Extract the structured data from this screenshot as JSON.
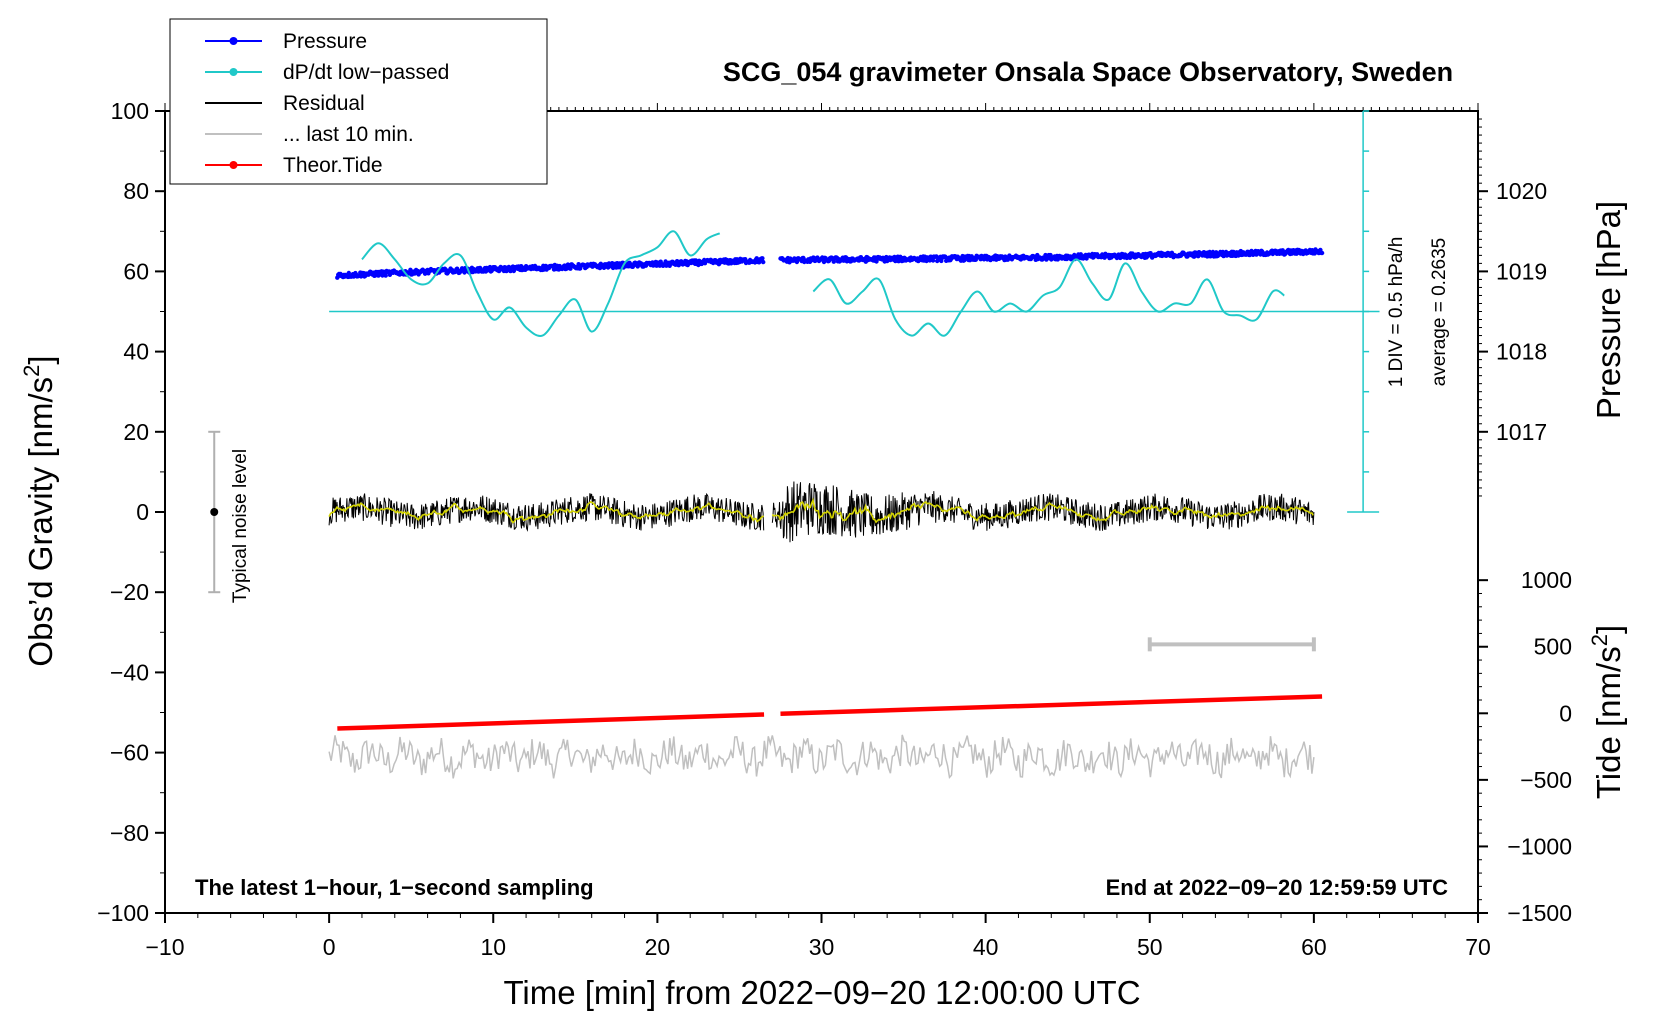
{
  "chart_data": {
    "type": "line",
    "title": "SCG_054 gravimeter Onsala Space Observatory, Sweden",
    "xlabel": "Time [min] from 2022−09−20 12:00:00 UTC",
    "ylabel_left": "Obs’d Gravity [nm/s",
    "ylabel_left_sup": "2",
    "ylabel_left_close": "]",
    "ylabel_right_pressure": "Pressure [hPa]",
    "ylabel_right_tide": "Tide [nm/s",
    "ylabel_right_tide_sup": "2",
    "ylabel_right_tide_close": "]",
    "xlim": [
      -10,
      70
    ],
    "ylim": [
      -100,
      100
    ],
    "x_ticks": [
      -10,
      0,
      10,
      20,
      30,
      40,
      50,
      60,
      70
    ],
    "x_tick_labels": [
      "−10",
      "0",
      "10",
      "20",
      "30",
      "40",
      "50",
      "60",
      "70"
    ],
    "y_ticks": [
      100,
      80,
      60,
      40,
      20,
      0,
      -20,
      -40,
      -60,
      -80,
      -100
    ],
    "y_tick_labels": [
      "100",
      "80",
      "60",
      "40",
      "20",
      "0",
      "−20",
      "−40",
      "−60",
      "−80",
      "−100"
    ],
    "pressure_axis": {
      "ticks": [
        1020,
        1019,
        1018,
        1017
      ],
      "tick_labels": [
        "1020",
        "1019",
        "1018",
        "1017"
      ],
      "map": [
        [
          1020,
          80
        ],
        [
          1017,
          20
        ]
      ]
    },
    "tide_axis": {
      "ticks": [
        1000,
        500,
        0,
        -500,
        -1000,
        -1500
      ],
      "tick_labels": [
        "1000",
        "500",
        "0",
        "−500",
        "−1000",
        "−1500"
      ],
      "map": [
        [
          1000,
          -17
        ],
        [
          -1500,
          -100
        ]
      ]
    },
    "legend": [
      {
        "label": "Pressure",
        "color": "#0000ff",
        "marker": true
      },
      {
        "label": "dP/dt low−passed",
        "color": "#20c8c8",
        "marker": true
      },
      {
        "label": "Residual",
        "color": "#000000",
        "marker": false
      },
      {
        "label": "... last 10 min.",
        "color": "#c0c0c0",
        "marker": false
      },
      {
        "label": "Theor.Tide",
        "color": "#ff0000",
        "marker": true
      }
    ],
    "series": [
      {
        "name": "Pressure",
        "color": "#0000ff",
        "segments": [
          {
            "x": [
              0.5,
              5,
              10,
              15,
              20,
              26.5
            ],
            "y": [
              59,
              59.8,
              60.5,
              61.2,
              61.8,
              62.8
            ]
          },
          {
            "x": [
              27.5,
              35,
              42,
              50,
              56,
              60.5
            ],
            "y": [
              62.8,
              63.1,
              63.4,
              64,
              64.5,
              65
            ]
          }
        ]
      },
      {
        "name": "dP/dt low−passed",
        "color": "#20c8c8",
        "segments": [
          {
            "x": [
              2,
              3,
              4,
              5,
              6,
              7,
              8,
              9,
              10,
              11,
              12,
              13,
              14,
              15,
              16,
              17,
              18,
              19,
              20,
              21,
              22,
              23,
              23.8
            ],
            "y": [
              63,
              67,
              63,
              58,
              57,
              62,
              64,
              55,
              48,
              51,
              46,
              44,
              49,
              53,
              45,
              52,
              62,
              64,
              66,
              70,
              64,
              68,
              69.5
            ]
          },
          {
            "x": [
              29.5,
              30.5,
              31.5,
              32.5,
              33.5,
              34.5,
              35.5,
              36.5,
              37.5,
              38.5,
              39.5,
              40.5,
              41.5,
              42.5,
              43.5,
              44.5,
              45.5,
              46.5,
              47.5,
              48.5,
              49.5,
              50.5,
              51.5,
              52.5,
              53.5,
              54.5,
              55.5,
              56.5,
              57.5,
              58.2
            ],
            "y": [
              55,
              58,
              52,
              55,
              58,
              48,
              44,
              47,
              44,
              50,
              55,
              50,
              52,
              50,
              54,
              56,
              63,
              57,
              53,
              62,
              55,
              50,
              52,
              52,
              58,
              50,
              49,
              48,
              55,
              54
            ]
          }
        ]
      },
      {
        "name": "Theor.Tide",
        "color": "#ff0000",
        "segments": [
          {
            "x": [
              0.5,
              26.5
            ],
            "y": [
              -54,
              -50.5
            ]
          },
          {
            "x": [
              27.5,
              60.5
            ],
            "y": [
              -50.3,
              -46
            ]
          }
        ]
      }
    ],
    "residual": {
      "segments": [
        [
          0,
          26.5
        ],
        [
          27,
          60
        ]
      ],
      "level": 0,
      "quiet_amplitude": 3.5,
      "loud_range": [
        27.5,
        37
      ],
      "loud_amplitude": 8,
      "smoothed_color": "#d4d400"
    },
    "last_10_min": {
      "level": -61,
      "amplitude": 4,
      "range": [
        0,
        60
      ]
    },
    "reference_line": {
      "y": 50,
      "x_range": [
        0,
        64
      ]
    },
    "scale_bar": {
      "x": 63,
      "y_range": [
        0,
        100
      ],
      "divisions": 10
    },
    "scale_bar_label_div": "1 DIV = 0.5 hPa/h",
    "scale_bar_label_avg": "average = 0.2635",
    "noise_bar": {
      "x": -7,
      "y_range": [
        -20,
        20
      ],
      "center": 0
    },
    "noise_label": "Typical noise level",
    "range_bar": {
      "x_range": [
        50,
        60
      ],
      "y": -33
    },
    "bottom_left_note": "The latest 1−hour, 1−second sampling",
    "bottom_right_note": "End at 2022−09−20 12:59:59 UTC"
  }
}
